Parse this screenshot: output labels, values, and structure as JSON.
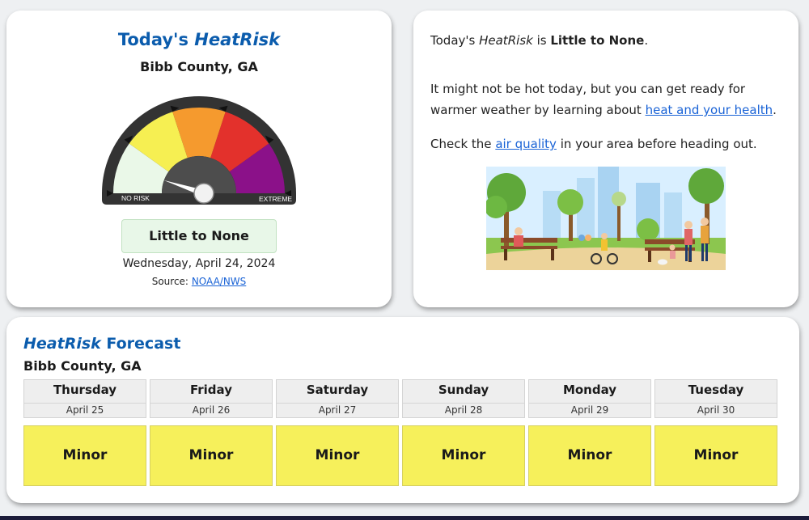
{
  "today": {
    "title_prefix": "Today's",
    "title_italic": "HeatRisk",
    "county": "Bibb County, GA",
    "gauge": {
      "label_low": "NO RISK",
      "label_high": "EXTREME",
      "level": 0,
      "colors": [
        "#eaf8e8",
        "#f6ef52",
        "#f59a2e",
        "#e3312c",
        "#8b1189"
      ]
    },
    "risk_label": "Little to None",
    "date": "Wednesday, April 24, 2024",
    "source_label": "Source:",
    "source_link": "NOAA/NWS"
  },
  "info": {
    "line1_prefix": "Today's",
    "line1_italic": "HeatRisk",
    "line1_is": "is",
    "line1_value": "Little to None",
    "line1_end": ".",
    "p2_text": "It might not be hot today, but you can get ready for warmer weather by learning about",
    "p2_link": "heat and your health",
    "p2_end": ".",
    "p3_prefix": "Check the",
    "p3_link": "air quality",
    "p3_suffix": "in your area before heading out."
  },
  "forecast": {
    "title_italic": "HeatRisk",
    "title_rest": "Forecast",
    "county": "Bibb County, GA",
    "days": [
      {
        "name": "Thursday",
        "date": "April 25",
        "risk": "Minor"
      },
      {
        "name": "Friday",
        "date": "April 26",
        "risk": "Minor"
      },
      {
        "name": "Saturday",
        "date": "April 27",
        "risk": "Minor"
      },
      {
        "name": "Sunday",
        "date": "April 28",
        "risk": "Minor"
      },
      {
        "name": "Monday",
        "date": "April 29",
        "risk": "Minor"
      },
      {
        "name": "Tuesday",
        "date": "April 30",
        "risk": "Minor"
      }
    ],
    "minor_color": "#f6f05b"
  }
}
